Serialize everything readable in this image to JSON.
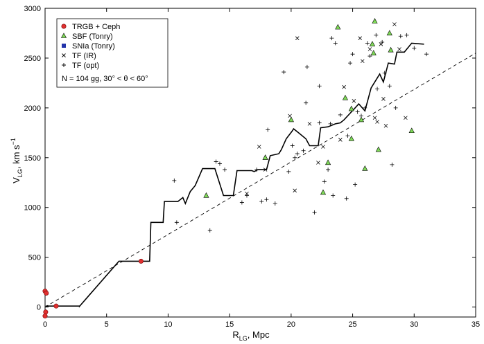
{
  "chart_data": {
    "type": "scatter",
    "xlim": [
      0,
      35
    ],
    "ylim": [
      -100,
      3000
    ],
    "x_ticks": [
      0,
      5,
      10,
      15,
      20,
      25,
      30,
      35
    ],
    "y_ticks": [
      0,
      500,
      1000,
      1500,
      2000,
      2500,
      3000
    ],
    "xlabel": {
      "main": "R",
      "sub": "LG",
      "tail": ", Mpc"
    },
    "ylabel": {
      "main": "V",
      "sub": "LG",
      "tail": ", km s",
      "sup": "−1"
    },
    "legend": {
      "placement": "top-left",
      "entries": [
        {
          "label": "TRGB + Ceph",
          "marker": "circle",
          "color": "#e03030"
        },
        {
          "label": "SBF (Tonry)",
          "marker": "triangle",
          "color": "#7ed957"
        },
        {
          "label": "SNIa (Tonry)",
          "marker": "square",
          "color": "#2233aa"
        },
        {
          "label": "TF (IR)",
          "marker": "x",
          "color": "#000000"
        },
        {
          "label": "TF (opt)",
          "marker": "plus",
          "color": "#000000"
        }
      ],
      "note": "N = 104 gg,   30° < θ < 60°"
    },
    "series": [
      {
        "name": "TRGB + Ceph",
        "marker": "circle",
        "points": [
          [
            0.0,
            160
          ],
          [
            0.1,
            140
          ],
          [
            0.05,
            -50
          ],
          [
            0.0,
            -90
          ],
          [
            0.9,
            10
          ],
          [
            7.8,
            460
          ]
        ]
      },
      {
        "name": "SBF (Tonry)",
        "marker": "triangle",
        "points": [
          [
            13.1,
            1120
          ],
          [
            17.9,
            1500
          ],
          [
            20.0,
            1880
          ],
          [
            22.6,
            1150
          ],
          [
            23.0,
            1450
          ],
          [
            23.8,
            2810
          ],
          [
            24.4,
            2100
          ],
          [
            24.9,
            1990
          ],
          [
            24.9,
            1690
          ],
          [
            25.7,
            1880
          ],
          [
            26.0,
            1390
          ],
          [
            26.6,
            2640
          ],
          [
            26.8,
            2870
          ],
          [
            26.7,
            2550
          ],
          [
            27.1,
            1580
          ],
          [
            28.0,
            2750
          ],
          [
            28.1,
            2580
          ],
          [
            29.8,
            1770
          ]
        ]
      },
      {
        "name": "TF (IR)",
        "marker": "x",
        "points": [
          [
            16.4,
            1140
          ],
          [
            17.4,
            1610
          ],
          [
            17.9,
            1380
          ],
          [
            19.9,
            1920
          ],
          [
            20.3,
            1170
          ],
          [
            20.5,
            2700
          ],
          [
            21.5,
            1840
          ],
          [
            22.2,
            1450
          ],
          [
            22.6,
            1610
          ],
          [
            24.0,
            1680
          ],
          [
            24.3,
            2210
          ],
          [
            25.1,
            2070
          ],
          [
            25.6,
            2700
          ],
          [
            25.8,
            2470
          ],
          [
            26.4,
            2590
          ],
          [
            26.8,
            1900
          ],
          [
            27.0,
            1860
          ],
          [
            27.3,
            2640
          ],
          [
            27.5,
            2090
          ],
          [
            27.7,
            1820
          ],
          [
            28.4,
            2840
          ],
          [
            29.3,
            1900
          ],
          [
            28.8,
            2590
          ]
        ]
      },
      {
        "name": "TF (opt)",
        "marker": "plus",
        "points": [
          [
            10.5,
            1270
          ],
          [
            10.7,
            850
          ],
          [
            13.4,
            770
          ],
          [
            13.9,
            1460
          ],
          [
            14.2,
            1440
          ],
          [
            14.6,
            1380
          ],
          [
            16.0,
            1050
          ],
          [
            16.4,
            1120
          ],
          [
            17.2,
            1380
          ],
          [
            17.6,
            1060
          ],
          [
            18.0,
            1080
          ],
          [
            18.1,
            1780
          ],
          [
            18.7,
            1040
          ],
          [
            19.4,
            2360
          ],
          [
            19.8,
            1360
          ],
          [
            20.1,
            1620
          ],
          [
            20.3,
            1500
          ],
          [
            20.5,
            1540
          ],
          [
            21.0,
            1570
          ],
          [
            21.2,
            2050
          ],
          [
            21.3,
            2410
          ],
          [
            21.9,
            950
          ],
          [
            22.3,
            2220
          ],
          [
            22.3,
            1850
          ],
          [
            22.7,
            1260
          ],
          [
            23.0,
            1380
          ],
          [
            23.2,
            1840
          ],
          [
            23.3,
            2700
          ],
          [
            23.4,
            1120
          ],
          [
            23.6,
            2650
          ],
          [
            24.0,
            1930
          ],
          [
            24.5,
            1090
          ],
          [
            24.6,
            1720
          ],
          [
            24.8,
            2450
          ],
          [
            25.0,
            2540
          ],
          [
            25.2,
            1230
          ],
          [
            25.4,
            1960
          ],
          [
            25.7,
            1920
          ],
          [
            26.0,
            2000
          ],
          [
            26.2,
            2650
          ],
          [
            26.4,
            2520
          ],
          [
            26.9,
            2730
          ],
          [
            27.0,
            2190
          ],
          [
            27.4,
            2660
          ],
          [
            27.6,
            2350
          ],
          [
            28.0,
            2220
          ],
          [
            28.2,
            1430
          ],
          [
            28.5,
            2000
          ],
          [
            28.9,
            2720
          ],
          [
            29.4,
            2730
          ],
          [
            30.0,
            2600
          ],
          [
            31.0,
            2540
          ]
        ]
      },
      {
        "name": "running mean",
        "line": "solid",
        "points": [
          [
            0.05,
            10
          ],
          [
            2.8,
            10
          ],
          [
            2.8,
            8
          ],
          [
            6.0,
            460
          ],
          [
            8.5,
            460
          ],
          [
            8.6,
            850
          ],
          [
            9.6,
            850
          ],
          [
            9.7,
            1060
          ],
          [
            10.8,
            1060
          ],
          [
            11.2,
            1100
          ],
          [
            11.4,
            1040
          ],
          [
            11.8,
            1160
          ],
          [
            12.2,
            1220
          ],
          [
            12.8,
            1390
          ],
          [
            13.8,
            1390
          ],
          [
            14.5,
            1120
          ],
          [
            15.3,
            1120
          ],
          [
            15.6,
            1370
          ],
          [
            16.8,
            1370
          ],
          [
            17.0,
            1360
          ],
          [
            17.3,
            1380
          ],
          [
            18.0,
            1380
          ],
          [
            18.3,
            1520
          ],
          [
            19.0,
            1540
          ],
          [
            19.2,
            1580
          ],
          [
            19.6,
            1690
          ],
          [
            20.1,
            1770
          ],
          [
            20.2,
            1790
          ],
          [
            20.6,
            1750
          ],
          [
            21.2,
            1690
          ],
          [
            21.5,
            1620
          ],
          [
            22.2,
            1620
          ],
          [
            22.4,
            1800
          ],
          [
            23.0,
            1810
          ],
          [
            23.6,
            1840
          ],
          [
            24.0,
            1850
          ],
          [
            24.3,
            1880
          ],
          [
            25.2,
            2000
          ],
          [
            25.5,
            2040
          ],
          [
            26.0,
            1970
          ],
          [
            26.5,
            2200
          ],
          [
            27.2,
            2340
          ],
          [
            27.5,
            2260
          ],
          [
            27.9,
            2450
          ],
          [
            28.4,
            2440
          ],
          [
            28.6,
            2560
          ],
          [
            29.2,
            2560
          ],
          [
            29.8,
            2650
          ],
          [
            30.8,
            2640
          ]
        ]
      },
      {
        "name": "linear fit",
        "line": "dashed",
        "points": [
          [
            0,
            0
          ],
          [
            35,
            2550
          ]
        ]
      }
    ]
  }
}
